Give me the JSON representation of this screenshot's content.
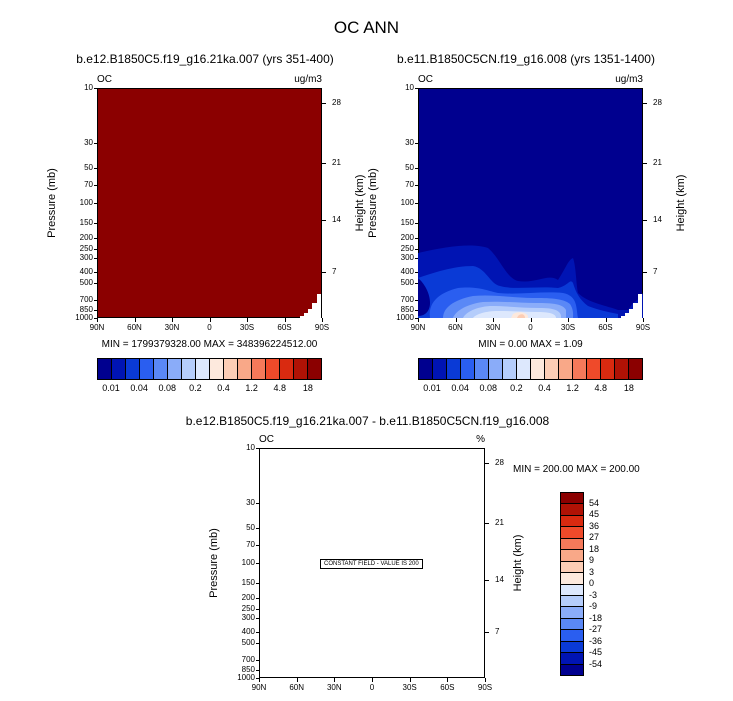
{
  "title": "OC ANN",
  "panels": [
    {
      "title": "b.e12.B1850C5.f19_g16.21ka.007 (yrs 351-400)",
      "var_label": "OC",
      "units": "ug/m3",
      "ylabel": "Pressure (mb)",
      "ylabel_right": "Height (km)",
      "minmax": "MIN = 1799379328.00   MAX = 348396224512.00"
    },
    {
      "title": "b.e11.B1850C5CN.f19_g16.008 (yrs 1351-1400)",
      "var_label": "OC",
      "units": "ug/m3",
      "ylabel": "Pressure (mb)",
      "ylabel_right": "Height (km)",
      "minmax": "MIN =   0.00   MAX =   1.09"
    },
    {
      "title": "b.e12.B1850C5.f19_g16.21ka.007 - b.e11.B1850C5CN.f19_g16.008",
      "var_label": "OC",
      "units": "%",
      "ylabel": "Pressure (mb)",
      "ylabel_right": "Height (km)",
      "minmax": "MIN = 200.00   MAX = 200.00",
      "constant_note": "CONSTANT FIELD - VALUE IS 200"
    }
  ],
  "colorbar_top": {
    "labels": [
      "0.01",
      "0.04",
      "0.08",
      "0.2",
      "0.4",
      "1.2",
      "4.8",
      "18"
    ],
    "colors": [
      "#00008f",
      "#0014b3",
      "#0a3ad6",
      "#2a5ef0",
      "#5a88f6",
      "#8aacf9",
      "#b5cdfb",
      "#dde8fd",
      "#fde9dd",
      "#fccdb5",
      "#f9a888",
      "#f5795a",
      "#ef4a2a",
      "#d92a10",
      "#b01205",
      "#8b0000"
    ]
  },
  "colorbar_diff": {
    "labels": [
      "54",
      "45",
      "36",
      "27",
      "18",
      "9",
      "3",
      "0",
      "-3",
      "-9",
      "-18",
      "-27",
      "-36",
      "-45",
      "-54"
    ],
    "colors": [
      "#8b0000",
      "#b01205",
      "#d92a10",
      "#ef4a2a",
      "#f5795a",
      "#f9a888",
      "#fccdb5",
      "#fde9dd",
      "#dde8fd",
      "#b5cdfb",
      "#8aacf9",
      "#5a88f6",
      "#2a5ef0",
      "#0a3ad6",
      "#0014b3",
      "#00008f"
    ]
  },
  "chart_data": [
    {
      "type": "heatmap",
      "title": "b.e12.B1850C5.f19_g16.21ka.007 (yrs 351-400)",
      "x_ticks": [
        "90N",
        "60N",
        "30N",
        "0",
        "30S",
        "60S",
        "90S"
      ],
      "y_ticks_pressure": [
        "10",
        "30",
        "50",
        "70",
        "100",
        "150",
        "200",
        "250",
        "300",
        "400",
        "500",
        "700",
        "850",
        "1000"
      ],
      "y_ticks_height": [
        "28",
        "21",
        "14",
        "7"
      ],
      "ylabel": "Pressure (mb)",
      "ylabel_right": "Height (km)",
      "units": "ug/m3",
      "min": 1799379328.0,
      "max": 348396224512.0,
      "log_y": true
    },
    {
      "type": "heatmap",
      "title": "b.e11.B1850C5CN.f19_g16.008 (yrs 1351-1400)",
      "x_ticks": [
        "90N",
        "60N",
        "30N",
        "0",
        "30S",
        "60S",
        "90S"
      ],
      "y_ticks_pressure": [
        "10",
        "30",
        "50",
        "70",
        "100",
        "150",
        "200",
        "250",
        "300",
        "400",
        "500",
        "700",
        "850",
        "1000"
      ],
      "y_ticks_height": [
        "28",
        "21",
        "14",
        "7"
      ],
      "ylabel": "Pressure (mb)",
      "ylabel_right": "Height (km)",
      "units": "ug/m3",
      "min": 0.0,
      "max": 1.09,
      "log_y": true
    },
    {
      "type": "heatmap",
      "title": "b.e12.B1850C5.f19_g16.21ka.007 - b.e11.B1850C5CN.f19_g16.008",
      "x_ticks": [
        "90N",
        "60N",
        "30N",
        "0",
        "30S",
        "60S",
        "90S"
      ],
      "y_ticks_pressure": [
        "10",
        "30",
        "50",
        "70",
        "100",
        "150",
        "200",
        "250",
        "300",
        "400",
        "500",
        "700",
        "850",
        "1000"
      ],
      "y_ticks_height": [
        "28",
        "21",
        "14",
        "7"
      ],
      "ylabel": "Pressure (mb)",
      "ylabel_right": "Height (km)",
      "units": "%",
      "min": 200.0,
      "max": 200.0,
      "log_y": true
    }
  ]
}
